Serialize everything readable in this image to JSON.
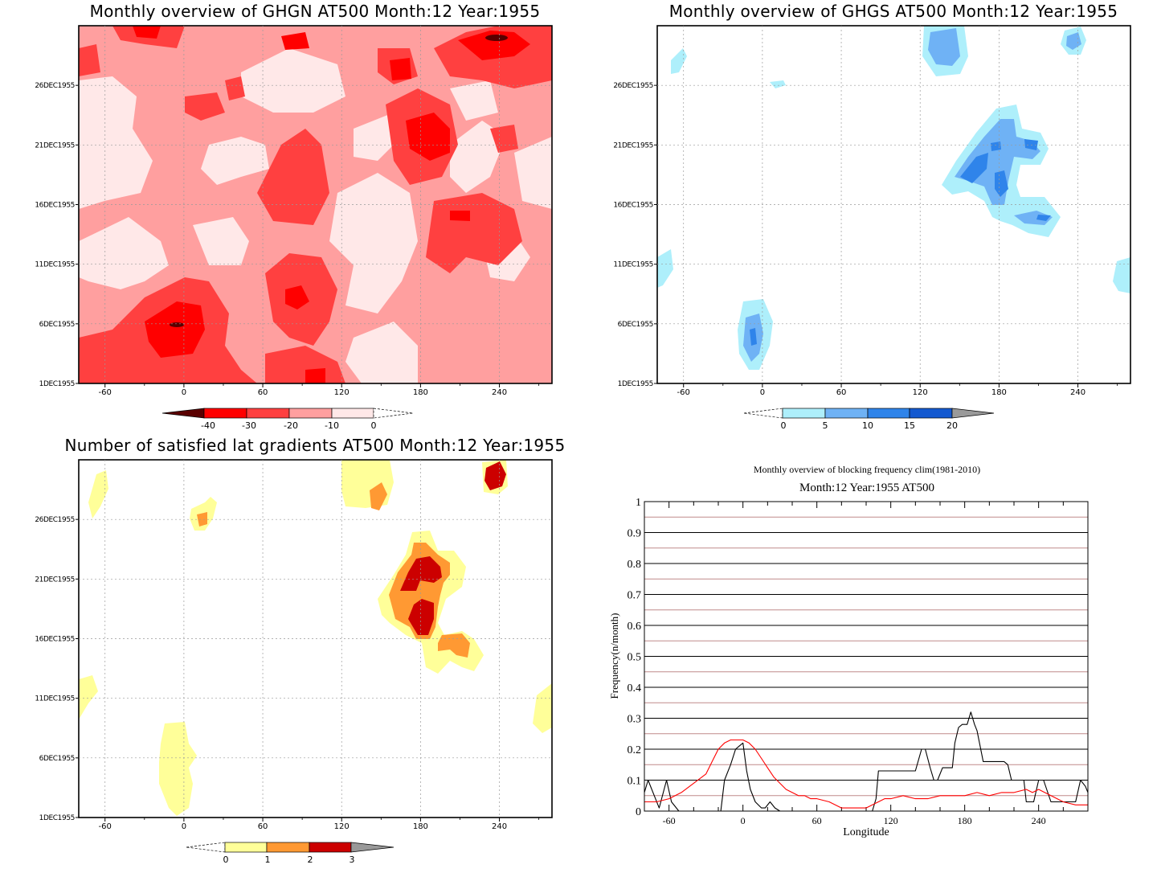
{
  "panels": {
    "ghgn": {
      "title": "Monthly overview of GHGN AT500 Month:12 Year:1955"
    },
    "ghgs": {
      "title": "Monthly overview of GHGS AT500 Month:12 Year:1955"
    },
    "lat": {
      "title": "Number of satisfied lat gradients AT500 Month:12 Year:1955"
    },
    "freq": {
      "title": "Monthly overview of blocking frequency clim(1981-2010)",
      "subtitle": "Month:12 Year:1955  AT500"
    }
  },
  "colors": {
    "ghgn": [
      "#5a0000",
      "#ff0000",
      "#ff4040",
      "#ff9f9f",
      "#ffe8e8"
    ],
    "ghgs": [
      "#aeeffb",
      "#6fb2f5",
      "#2f84ea",
      "#1459d0",
      "#9a9a9a"
    ],
    "lat": [
      "#ffff99",
      "#ff9933",
      "#cc0000",
      "#999999"
    ],
    "freq_current": "#000000",
    "freq_clim": "#ff0000"
  },
  "chart_data": [
    {
      "type": "heatmap",
      "title": "Monthly overview of GHGN AT500 Month:12 Year:1955",
      "x_tick_labels": [
        "-60",
        "0",
        "60",
        "120",
        "180",
        "240"
      ],
      "y_tick_labels": [
        "1DEC1955",
        "6DEC1955",
        "11DEC1955",
        "16DEC1955",
        "21DEC1955",
        "26DEC1955"
      ],
      "xlim": [
        -80,
        280
      ],
      "colorbar_levels": [
        "-40",
        "-30",
        "-20",
        "-10",
        "0"
      ],
      "features": [
        {
          "x": -10,
          "day": 5.5,
          "value": -45
        },
        {
          "x": 90,
          "day": 8,
          "value": -35
        },
        {
          "x": 190,
          "day": 21,
          "value": -35
        },
        {
          "x": 240,
          "day": 29.5,
          "value": -45
        },
        {
          "x": 205,
          "day": 16,
          "value": -35
        },
        {
          "x": 100,
          "day": 2,
          "value": -35
        },
        {
          "x": 165,
          "day": 27,
          "value": -35
        }
      ]
    },
    {
      "type": "heatmap",
      "title": "Monthly overview of GHGS AT500 Month:12 Year:1955",
      "x_tick_labels": [
        "-60",
        "0",
        "60",
        "120",
        "180",
        "240"
      ],
      "y_tick_labels": [
        "1DEC1955",
        "6DEC1955",
        "11DEC1955",
        "16DEC1955",
        "21DEC1955",
        "26DEC1955"
      ],
      "xlim": [
        -80,
        280
      ],
      "colorbar_levels": [
        "0",
        "5",
        "10",
        "15",
        "20"
      ],
      "features": [
        {
          "x": -8,
          "day": 5,
          "value": 10
        },
        {
          "x": 178,
          "day": 19.5,
          "value": 15
        },
        {
          "x": 200,
          "day": 15,
          "value": 10
        },
        {
          "x": 145,
          "day": 29,
          "value": 10
        },
        {
          "x": 237,
          "day": 29,
          "value": 10
        }
      ]
    },
    {
      "type": "heatmap",
      "title": "Number of satisfied lat gradients AT500 Month:12 Year:1955",
      "x_tick_labels": [
        "-60",
        "0",
        "60",
        "120",
        "180",
        "240"
      ],
      "y_tick_labels": [
        "1DEC1955",
        "6DEC1955",
        "11DEC1955",
        "16DEC1955",
        "21DEC1955",
        "26DEC1955"
      ],
      "xlim": [
        -80,
        280
      ],
      "colorbar_levels": [
        "0",
        "1",
        "2",
        "3"
      ],
      "features": [
        {
          "x": 178,
          "day": 21,
          "value": 3
        },
        {
          "x": 178,
          "day": 18,
          "value": 3
        },
        {
          "x": 238,
          "day": 29.5,
          "value": 3
        },
        {
          "x": 210,
          "day": 16,
          "value": 2
        },
        {
          "x": 147,
          "day": 28,
          "value": 2
        },
        {
          "x": 14,
          "day": 26,
          "value": 2
        },
        {
          "x": -8,
          "day": 5,
          "value": 1
        }
      ]
    },
    {
      "type": "line",
      "title": "Monthly overview of blocking frequency clim(1981-2010)",
      "subtitle": "Month:12 Year:1955  AT500",
      "xlabel": "Longitude",
      "ylabel": "Frequency(n/month)",
      "xlim": [
        -80,
        280
      ],
      "ylim": [
        0,
        1
      ],
      "x_tick_labels": [
        "-60",
        "0",
        "60",
        "120",
        "180",
        "240"
      ],
      "y_tick_labels": [
        "0",
        "0.1",
        "0.2",
        "0.3",
        "0.4",
        "0.5",
        "0.6",
        "0.7",
        "0.8",
        "0.9",
        "1"
      ],
      "series": [
        {
          "x": [
            -80,
            -77,
            -72,
            -68,
            -62,
            -58,
            -52,
            -48,
            -40,
            -30,
            -22,
            -18,
            -15,
            -10,
            -6,
            -3,
            0,
            3,
            6,
            10,
            15,
            18,
            22,
            26,
            30,
            60,
            100,
            105,
            108,
            110,
            140,
            145,
            148,
            152,
            155,
            158,
            162,
            170,
            172,
            175,
            178,
            182,
            185,
            188,
            190,
            195,
            205,
            212,
            215,
            218,
            222,
            228,
            230,
            236,
            240,
            244,
            250,
            256,
            260,
            270,
            274,
            278,
            280
          ],
          "y": [
            0.06,
            0.1,
            0.05,
            0.01,
            0.1,
            0.03,
            0.0,
            0.0,
            0.0,
            0.0,
            0.0,
            0.0,
            0.1,
            0.15,
            0.2,
            0.21,
            0.22,
            0.13,
            0.07,
            0.03,
            0.01,
            0.01,
            0.03,
            0.01,
            0.0,
            0.0,
            0.0,
            0.0,
            0.04,
            0.13,
            0.13,
            0.2,
            0.2,
            0.14,
            0.1,
            0.1,
            0.14,
            0.14,
            0.22,
            0.27,
            0.28,
            0.28,
            0.32,
            0.28,
            0.26,
            0.16,
            0.16,
            0.16,
            0.15,
            0.1,
            0.1,
            0.1,
            0.03,
            0.03,
            0.1,
            0.1,
            0.03,
            0.03,
            0.03,
            0.03,
            0.1,
            0.08,
            0.06
          ]
        },
        {
          "x": [
            -80,
            -70,
            -60,
            -50,
            -40,
            -30,
            -25,
            -20,
            -15,
            -10,
            -5,
            0,
            5,
            10,
            15,
            20,
            25,
            30,
            35,
            40,
            45,
            50,
            55,
            60,
            70,
            80,
            90,
            100,
            105,
            110,
            115,
            120,
            130,
            140,
            150,
            160,
            170,
            180,
            190,
            200,
            210,
            220,
            230,
            235,
            240,
            245,
            250,
            260,
            270,
            280
          ],
          "y": [
            0.03,
            0.03,
            0.04,
            0.06,
            0.09,
            0.12,
            0.16,
            0.2,
            0.22,
            0.23,
            0.23,
            0.23,
            0.22,
            0.2,
            0.17,
            0.14,
            0.11,
            0.09,
            0.07,
            0.06,
            0.05,
            0.05,
            0.04,
            0.04,
            0.03,
            0.01,
            0.01,
            0.01,
            0.02,
            0.03,
            0.04,
            0.04,
            0.05,
            0.04,
            0.04,
            0.05,
            0.05,
            0.05,
            0.06,
            0.05,
            0.06,
            0.06,
            0.07,
            0.06,
            0.07,
            0.06,
            0.05,
            0.03,
            0.02,
            0.02
          ]
        }
      ]
    }
  ]
}
